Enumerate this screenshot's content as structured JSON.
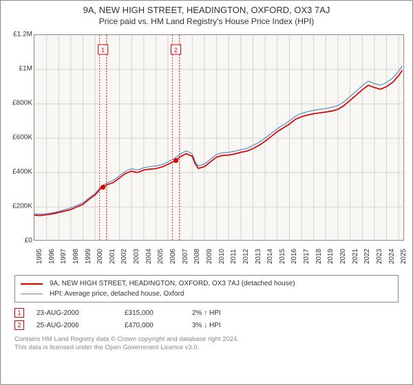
{
  "header": {
    "title_main": "9A, NEW HIGH STREET, HEADINGTON, OXFORD, OX3 7AJ",
    "title_sub": "Price paid vs. HM Land Registry's House Price Index (HPI)"
  },
  "chart": {
    "type": "line",
    "background_color": "#f9f7f3",
    "grid_color": "#d6d2c9",
    "border_color": "#888888",
    "x_range": [
      1995,
      2025.5
    ],
    "x_ticks": [
      1995,
      1996,
      1997,
      1998,
      1999,
      2000,
      2001,
      2002,
      2003,
      2004,
      2005,
      2006,
      2007,
      2008,
      2009,
      2010,
      2011,
      2012,
      2013,
      2014,
      2015,
      2016,
      2017,
      2018,
      2019,
      2020,
      2021,
      2022,
      2023,
      2024,
      2025
    ],
    "y_range": [
      0,
      1200000
    ],
    "y_ticks": [
      {
        "v": 0,
        "label": "£0"
      },
      {
        "v": 200000,
        "label": "£200K"
      },
      {
        "v": 400000,
        "label": "£400K"
      },
      {
        "v": 600000,
        "label": "£600K"
      },
      {
        "v": 800000,
        "label": "£800K"
      },
      {
        "v": 1000000,
        "label": "£1M"
      },
      {
        "v": 1200000,
        "label": "£1.2M"
      }
    ],
    "series": [
      {
        "name": "red",
        "color": "#d90000",
        "width": 1.7,
        "points": [
          [
            1995.0,
            152000
          ],
          [
            1995.5,
            150000
          ],
          [
            1996.0,
            155000
          ],
          [
            1996.5,
            160000
          ],
          [
            1997.0,
            168000
          ],
          [
            1997.5,
            176000
          ],
          [
            1998.0,
            185000
          ],
          [
            1998.5,
            200000
          ],
          [
            1999.0,
            215000
          ],
          [
            1999.5,
            245000
          ],
          [
            2000.0,
            270000
          ],
          [
            2000.5,
            310000
          ],
          [
            2000.65,
            315000
          ],
          [
            2001.0,
            330000
          ],
          [
            2001.5,
            342000
          ],
          [
            2002.0,
            368000
          ],
          [
            2002.5,
            395000
          ],
          [
            2003.0,
            408000
          ],
          [
            2003.5,
            400000
          ],
          [
            2004.0,
            415000
          ],
          [
            2004.5,
            420000
          ],
          [
            2005.0,
            423000
          ],
          [
            2005.5,
            432000
          ],
          [
            2006.0,
            448000
          ],
          [
            2006.5,
            465000
          ],
          [
            2006.65,
            470000
          ],
          [
            2007.0,
            492000
          ],
          [
            2007.5,
            510000
          ],
          [
            2008.0,
            495000
          ],
          [
            2008.25,
            450000
          ],
          [
            2008.5,
            424000
          ],
          [
            2009.0,
            435000
          ],
          [
            2009.5,
            463000
          ],
          [
            2010.0,
            490000
          ],
          [
            2010.5,
            500000
          ],
          [
            2011.0,
            502000
          ],
          [
            2011.5,
            508000
          ],
          [
            2012.0,
            518000
          ],
          [
            2012.5,
            525000
          ],
          [
            2013.0,
            540000
          ],
          [
            2013.5,
            558000
          ],
          [
            2014.0,
            582000
          ],
          [
            2014.5,
            610000
          ],
          [
            2015.0,
            638000
          ],
          [
            2015.5,
            660000
          ],
          [
            2016.0,
            682000
          ],
          [
            2016.5,
            710000
          ],
          [
            2017.0,
            725000
          ],
          [
            2017.5,
            735000
          ],
          [
            2018.0,
            742000
          ],
          [
            2018.5,
            747000
          ],
          [
            2019.0,
            752000
          ],
          [
            2019.5,
            758000
          ],
          [
            2020.0,
            768000
          ],
          [
            2020.5,
            790000
          ],
          [
            2021.0,
            820000
          ],
          [
            2021.5,
            850000
          ],
          [
            2022.0,
            882000
          ],
          [
            2022.5,
            908000
          ],
          [
            2023.0,
            895000
          ],
          [
            2023.5,
            885000
          ],
          [
            2024.0,
            900000
          ],
          [
            2024.5,
            925000
          ],
          [
            2025.0,
            965000
          ],
          [
            2025.3,
            995000
          ]
        ]
      },
      {
        "name": "blue",
        "color": "#5a8ac6",
        "width": 1.2,
        "points": [
          [
            1995.0,
            160000
          ],
          [
            1995.5,
            158000
          ],
          [
            1996.0,
            161000
          ],
          [
            1996.5,
            166000
          ],
          [
            1997.0,
            174000
          ],
          [
            1997.5,
            184000
          ],
          [
            1998.0,
            195000
          ],
          [
            1998.5,
            209000
          ],
          [
            1999.0,
            225000
          ],
          [
            1999.5,
            253000
          ],
          [
            2000.0,
            278000
          ],
          [
            2000.5,
            320000
          ],
          [
            2001.0,
            340000
          ],
          [
            2001.5,
            355000
          ],
          [
            2002.0,
            380000
          ],
          [
            2002.5,
            408000
          ],
          [
            2003.0,
            422000
          ],
          [
            2003.5,
            415000
          ],
          [
            2004.0,
            428000
          ],
          [
            2004.5,
            435000
          ],
          [
            2005.0,
            438000
          ],
          [
            2005.5,
            446000
          ],
          [
            2006.0,
            462000
          ],
          [
            2006.5,
            480000
          ],
          [
            2007.0,
            508000
          ],
          [
            2007.5,
            527000
          ],
          [
            2008.0,
            510000
          ],
          [
            2008.25,
            463000
          ],
          [
            2008.5,
            438000
          ],
          [
            2009.0,
            450000
          ],
          [
            2009.5,
            478000
          ],
          [
            2010.0,
            505000
          ],
          [
            2010.5,
            516000
          ],
          [
            2011.0,
            518000
          ],
          [
            2011.5,
            524000
          ],
          [
            2012.0,
            533000
          ],
          [
            2012.5,
            541000
          ],
          [
            2013.0,
            558000
          ],
          [
            2013.5,
            576000
          ],
          [
            2014.0,
            600000
          ],
          [
            2014.5,
            628000
          ],
          [
            2015.0,
            655000
          ],
          [
            2015.5,
            678000
          ],
          [
            2016.0,
            700000
          ],
          [
            2016.5,
            728000
          ],
          [
            2017.0,
            744000
          ],
          [
            2017.5,
            755000
          ],
          [
            2018.0,
            762000
          ],
          [
            2018.5,
            768000
          ],
          [
            2019.0,
            773000
          ],
          [
            2019.5,
            780000
          ],
          [
            2020.0,
            790000
          ],
          [
            2020.5,
            812000
          ],
          [
            2021.0,
            843000
          ],
          [
            2021.5,
            873000
          ],
          [
            2022.0,
            906000
          ],
          [
            2022.5,
            932000
          ],
          [
            2023.0,
            918000
          ],
          [
            2023.5,
            908000
          ],
          [
            2024.0,
            924000
          ],
          [
            2024.5,
            950000
          ],
          [
            2025.0,
            990000
          ],
          [
            2025.3,
            1020000
          ]
        ]
      }
    ],
    "markers": [
      {
        "num": "1",
        "x": 2000.65,
        "y": 315000,
        "band_x": 2000.65,
        "color": "#d90000"
      },
      {
        "num": "2",
        "x": 2006.65,
        "y": 470000,
        "band_x": 2006.65,
        "color": "#d90000"
      }
    ],
    "marker_band_color": "#d90000"
  },
  "legend": {
    "items": [
      {
        "color": "#d90000",
        "width": 2,
        "label": "9A, NEW HIGH STREET, HEADINGTON, OXFORD, OX3 7AJ (detached house)"
      },
      {
        "color": "#5a8ac6",
        "width": 1,
        "label": "HPI: Average price, detached house, Oxford"
      }
    ]
  },
  "transactions": [
    {
      "num": "1",
      "date": "23-AUG-2000",
      "price": "£315,000",
      "delta": "2% ↑ HPI",
      "box_color": "#d90000"
    },
    {
      "num": "2",
      "date": "25-AUG-2006",
      "price": "£470,000",
      "delta": "3% ↓ HPI",
      "box_color": "#d90000"
    }
  ],
  "attribution": {
    "line1": "Contains HM Land Registry data © Crown copyright and database right 2024.",
    "line2": "This data is licensed under the Open Government Licence v3.0."
  }
}
